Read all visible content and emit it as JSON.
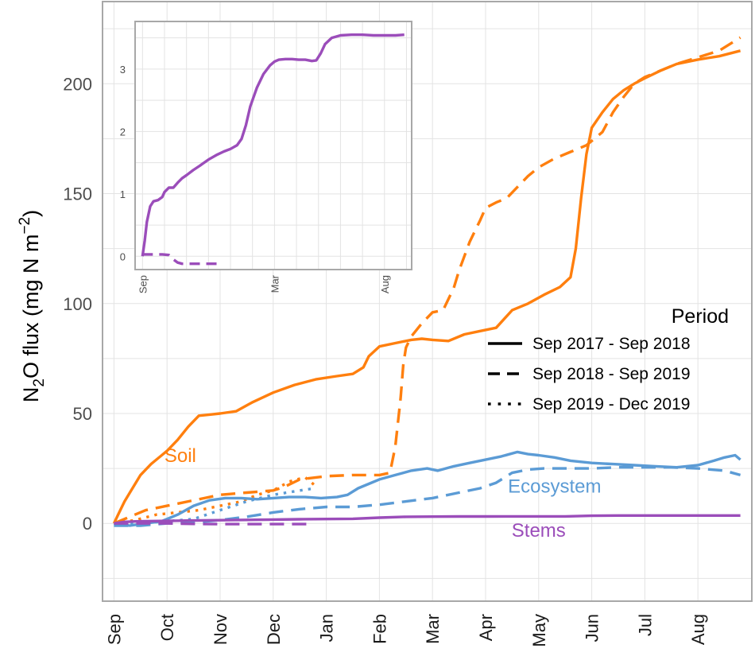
{
  "chart_data": [
    {
      "type": "line",
      "ylabel": "N₂O flux (mg N m⁻²)",
      "ylabel_parts": {
        "pre": "N",
        "sub": "2",
        "mid": "O flux (mg N m",
        "sup": "−2",
        "post": ")"
      },
      "xlabel": "",
      "ylim": [
        -35,
        237
      ],
      "xlim": [
        -0.2,
        12.0
      ],
      "yticks": [
        0,
        50,
        100,
        150,
        200
      ],
      "ytick_labels": [
        "0",
        "50",
        "100",
        "150",
        "200"
      ],
      "xticks": [
        0,
        1,
        2,
        3,
        4,
        5,
        6,
        7,
        8,
        9,
        10,
        11
      ],
      "xtick_labels": [
        "Sep",
        "Oct",
        "Nov",
        "Dec",
        "Jan",
        "Feb",
        "Mar",
        "Apr",
        "May",
        "Jun",
        "Jul",
        "Aug"
      ],
      "grid": true,
      "colors": {
        "soil": "#FF7F0E",
        "ecosystem": "#5B9BD5",
        "stems": "#9B4DBA"
      },
      "series_labels": [
        {
          "text": "Soil",
          "group": "soil",
          "x": 1.25,
          "y": 28
        },
        {
          "text": "Ecosystem",
          "group": "ecosystem",
          "x": 8.3,
          "y": 14
        },
        {
          "text": "Stems",
          "group": "stems",
          "x": 8.0,
          "y": -6
        }
      ],
      "legend": {
        "title": "Period",
        "position": "right",
        "entries": [
          {
            "label": "Sep 2017 - Sep 2018",
            "style": "solid"
          },
          {
            "label": "Sep 2018 - Sep 2019",
            "style": "dashed"
          },
          {
            "label": "Sep 2019 - Dec 2019",
            "style": "dotted"
          }
        ]
      },
      "series": [
        {
          "name": "Soil Sep 2017 - Sep 2018",
          "group": "soil",
          "style": "solid",
          "x": [
            0,
            0.1,
            0.2,
            0.3,
            0.5,
            0.7,
            0.9,
            1.0,
            1.2,
            1.4,
            1.6,
            1.8,
            2.0,
            2.3,
            2.6,
            3.0,
            3.4,
            3.8,
            4.2,
            4.5,
            4.7,
            4.8,
            5.0,
            5.3,
            5.6,
            5.8,
            6.0,
            6.3,
            6.6,
            6.9,
            7.0,
            7.2,
            7.5,
            7.8,
            8.1,
            8.4,
            8.6,
            8.7,
            8.8,
            8.9,
            9.0,
            9.2,
            9.4,
            9.6,
            9.8,
            10.0,
            10.3,
            10.6,
            11.0,
            11.4,
            11.8
          ],
          "y": [
            0,
            5,
            10,
            14,
            22,
            27,
            31,
            33,
            38,
            44,
            49,
            49.5,
            50,
            51,
            55,
            59.5,
            63,
            65.5,
            67,
            68,
            71,
            76,
            80.5,
            82,
            83.5,
            84,
            83.5,
            83,
            86,
            87.5,
            88,
            89,
            97,
            100,
            104,
            107.5,
            112,
            125,
            148,
            168,
            180,
            187,
            193,
            197,
            200,
            202.5,
            206,
            209,
            211,
            212.5,
            215
          ]
        },
        {
          "name": "Soil Sep 2018 - Sep 2019",
          "group": "soil",
          "style": "dashed",
          "x": [
            0,
            0.3,
            0.6,
            1.0,
            1.5,
            2.0,
            2.5,
            3.0,
            3.2,
            3.5,
            4.0,
            4.5,
            5.0,
            5.2,
            5.3,
            5.4,
            5.45,
            5.5,
            5.6,
            5.8,
            6.0,
            6.2,
            6.4,
            6.5,
            6.7,
            6.9,
            7.0,
            7.2,
            7.4,
            7.6,
            7.8,
            8.0,
            8.3,
            8.6,
            8.9,
            9.0,
            9.2,
            9.4,
            9.6,
            9.8,
            10.0,
            10.3,
            10.6,
            11.0,
            11.4,
            11.8
          ],
          "y": [
            0,
            3,
            6,
            8,
            10.5,
            13,
            14,
            15,
            16.5,
            20,
            21.5,
            22,
            22,
            23,
            35,
            57,
            72,
            80,
            85,
            91,
            96,
            97,
            107,
            115,
            128,
            138,
            143.5,
            146,
            148,
            153,
            158,
            162,
            166,
            169,
            172,
            174,
            178,
            187,
            194,
            200,
            203,
            206,
            209,
            212,
            215,
            221
          ]
        },
        {
          "name": "Soil Sep 2019 - Dec 2019",
          "group": "soil",
          "style": "dotted",
          "x": [
            0,
            0.4,
            0.8,
            1.2,
            1.6,
            2.0,
            2.4,
            2.7,
            3.0,
            3.3,
            3.6,
            3.8
          ],
          "y": [
            0,
            1.5,
            4,
            5,
            6,
            8,
            10,
            13,
            15,
            19,
            21,
            17
          ]
        },
        {
          "name": "Ecosystem Sep 2017 - Sep 2018",
          "group": "ecosystem",
          "style": "solid",
          "x": [
            0,
            0.3,
            0.6,
            0.9,
            1.2,
            1.5,
            1.8,
            2.1,
            2.4,
            2.7,
            3.0,
            3.3,
            3.6,
            3.9,
            4.2,
            4.4,
            4.6,
            4.8,
            5.0,
            5.3,
            5.6,
            5.9,
            6.1,
            6.4,
            6.7,
            7.0,
            7.3,
            7.6,
            7.8,
            8.0,
            8.3,
            8.6,
            9.0,
            9.4,
            9.8,
            10.2,
            10.6,
            11.0,
            11.3,
            11.5,
            11.7,
            11.8
          ],
          "y": [
            0,
            -1,
            0,
            1,
            4,
            8,
            10.5,
            11.5,
            11.5,
            11,
            11.5,
            12,
            12,
            11.5,
            12,
            13,
            16,
            18,
            20,
            22,
            24,
            25,
            24,
            26,
            27.5,
            29,
            30.5,
            32.5,
            31.5,
            31,
            30,
            28.5,
            27.5,
            27,
            26.5,
            26,
            25.5,
            26.5,
            28.5,
            30,
            31,
            29
          ]
        },
        {
          "name": "Ecosystem Sep 2018 - Sep 2019",
          "group": "ecosystem",
          "style": "dashed",
          "x": [
            0,
            0.5,
            1.0,
            1.5,
            2.0,
            2.5,
            3.0,
            3.5,
            4.0,
            4.5,
            5.0,
            5.5,
            6.0,
            6.5,
            6.9,
            7.2,
            7.5,
            7.8,
            8.1,
            8.5,
            9.0,
            9.5,
            10.0,
            10.5,
            11.0,
            11.5,
            11.8
          ],
          "y": [
            -1,
            -1,
            0,
            0.5,
            1.5,
            3,
            5,
            6.5,
            7.5,
            7.5,
            8.5,
            10,
            11.5,
            14,
            16,
            18.5,
            23,
            24.5,
            25,
            25,
            25,
            25.5,
            25.5,
            25.5,
            25,
            24,
            22
          ]
        },
        {
          "name": "Ecosystem Sep 2019 - Dec 2019",
          "group": "ecosystem",
          "style": "dotted",
          "x": [
            0,
            0.5,
            1.0,
            1.5,
            2.0,
            2.5,
            3.0,
            3.5,
            3.8
          ],
          "y": [
            0,
            0,
            1,
            2,
            6,
            10,
            13,
            15,
            16
          ]
        },
        {
          "name": "Stems Sep 2017 - Sep 2018",
          "group": "stems",
          "style": "solid",
          "x": [
            0,
            0.2,
            0.4,
            0.6,
            1.0,
            1.5,
            2.0,
            2.5,
            3.0,
            3.5,
            4.0,
            4.5,
            5.0,
            5.5,
            6.0,
            6.5,
            7.0,
            7.5,
            8.0,
            8.5,
            9.0,
            9.5,
            10.0,
            10.5,
            11.0,
            11.5,
            11.8
          ],
          "y": [
            0,
            0.7,
            0.9,
            1.0,
            1.15,
            1.3,
            1.45,
            1.6,
            1.75,
            1.9,
            2.0,
            2.1,
            2.6,
            3.0,
            3.1,
            3.15,
            3.15,
            3.2,
            3.2,
            3.2,
            3.5,
            3.6,
            3.6,
            3.6,
            3.6,
            3.6,
            3.6
          ]
        },
        {
          "name": "Stems Sep 2018 - Sep 2019",
          "group": "stems",
          "style": "dashed",
          "x": [
            0,
            0.5,
            1.0,
            1.5,
            2.0,
            2.5,
            3.0,
            3.5,
            3.7
          ],
          "y": [
            0,
            0,
            0,
            -0.2,
            -0.3,
            -0.3,
            -0.3,
            -0.3,
            -0.3
          ]
        }
      ]
    },
    {
      "type": "line",
      "role": "inset",
      "xlim": [
        -0.3,
        12.2
      ],
      "ylim": [
        -0.2,
        3.75
      ],
      "yticks": [
        0,
        1,
        2,
        3
      ],
      "ytick_labels": [
        "0",
        "1",
        "2",
        "3"
      ],
      "xticks": [
        0,
        6,
        11
      ],
      "xtick_labels": [
        "Sep",
        "Mar",
        "Aug"
      ],
      "grid": true,
      "series": [
        {
          "name": "Stems Sep 2017 - Sep 2018",
          "group": "stems",
          "style": "solid",
          "x": [
            0,
            0.1,
            0.2,
            0.35,
            0.5,
            0.7,
            0.9,
            1.0,
            1.2,
            1.4,
            1.6,
            1.8,
            2.0,
            2.3,
            2.6,
            3.0,
            3.4,
            3.7,
            4.0,
            4.3,
            4.5,
            4.7,
            4.9,
            5.2,
            5.5,
            5.8,
            6.0,
            6.2,
            6.5,
            6.8,
            7.1,
            7.4,
            7.7,
            7.9,
            8.1,
            8.3,
            8.6,
            9.0,
            9.5,
            10.0,
            10.5,
            11.0,
            11.5,
            11.9
          ],
          "y": [
            0,
            0.25,
            0.55,
            0.8,
            0.88,
            0.9,
            0.95,
            1.03,
            1.1,
            1.1,
            1.18,
            1.25,
            1.3,
            1.38,
            1.45,
            1.55,
            1.63,
            1.68,
            1.72,
            1.78,
            1.88,
            2.1,
            2.4,
            2.7,
            2.92,
            3.06,
            3.12,
            3.15,
            3.16,
            3.16,
            3.15,
            3.15,
            3.13,
            3.14,
            3.25,
            3.4,
            3.5,
            3.54,
            3.55,
            3.55,
            3.54,
            3.54,
            3.54,
            3.55
          ]
        },
        {
          "name": "Stems Sep 2018 - Sep 2019",
          "group": "stems",
          "style": "dashed",
          "x": [
            0,
            0.3,
            0.6,
            0.9,
            1.2,
            1.4,
            1.6,
            1.8,
            2.2,
            2.6,
            3.0,
            3.4,
            3.6
          ],
          "y": [
            0.03,
            0.03,
            0.03,
            0.03,
            0.02,
            -0.05,
            -0.1,
            -0.12,
            -0.12,
            -0.12,
            -0.12,
            -0.12,
            -0.12
          ]
        }
      ]
    }
  ]
}
